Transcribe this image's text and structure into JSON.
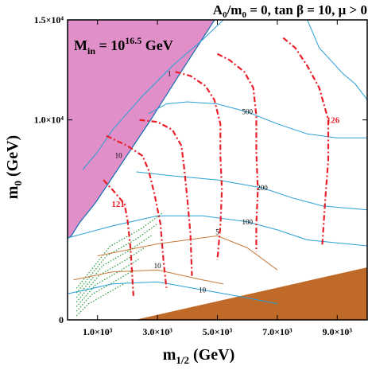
{
  "chart_data": {
    "type": "line",
    "title": "A0/m0 = 0, tan β = 10, μ > 0",
    "title_parts": {
      "a0": "A",
      "s0": "0",
      "slash": "/m",
      "s1": "0",
      "rest": " = 0, tan β = 10, μ > 0"
    },
    "min_label": {
      "m": "M",
      "sub": "in",
      "eq": " = 10",
      "sup": "16.5",
      "unit": " GeV"
    },
    "xlabel": {
      "m": "m",
      "sub": "1/2",
      "unit": " (GeV)"
    },
    "ylabel": {
      "m": "m",
      "sub": "0",
      "unit": " (GeV)"
    },
    "xlim": [
      0,
      10000
    ],
    "ylim": [
      0,
      15000
    ],
    "x_ticks": [
      {
        "value": 1000,
        "label": "1.0×10³"
      },
      {
        "value": 3000,
        "label": "3.0×10³"
      },
      {
        "value": 5000,
        "label": "5.0×10³"
      },
      {
        "value": 7000,
        "label": "7.0×10³"
      },
      {
        "value": 9000,
        "label": "9.0×10³"
      }
    ],
    "y_ticks": [
      {
        "value": 0,
        "label": "0"
      },
      {
        "value": 10000,
        "label": "1.0×10⁴"
      },
      {
        "value": 15000,
        "label": "1.5×10⁴"
      }
    ],
    "colors": {
      "no_ewsb_region": "#e08fc8",
      "charged_lsp_region": "#c06a2a",
      "higgs_mass": "#e8202a",
      "contours": "#2a9fd6",
      "brown_contours": "#c87a3a",
      "green_dotted": "#2a9a3a",
      "dashed_brown": "#c0803a"
    },
    "higgs_mass_contours": [
      {
        "label": "121",
        "points": [
          [
            1200,
            7000
          ],
          [
            1500,
            6500
          ],
          [
            1900,
            5800
          ],
          [
            2000,
            5000
          ],
          [
            2100,
            3600
          ],
          [
            2200,
            1200
          ]
        ]
      },
      {
        "label": "",
        "points": [
          [
            1300,
            9200
          ],
          [
            2000,
            8700
          ],
          [
            2500,
            8200
          ],
          [
            2700,
            7500
          ],
          [
            2900,
            6300
          ],
          [
            3100,
            4800
          ],
          [
            3200,
            3000
          ],
          [
            3300,
            1600
          ]
        ]
      },
      {
        "label": "",
        "points": [
          [
            2400,
            10000
          ],
          [
            3000,
            9900
          ],
          [
            3500,
            9500
          ],
          [
            3800,
            8700
          ],
          [
            3900,
            7500
          ],
          [
            4000,
            6000
          ],
          [
            4100,
            4300
          ],
          [
            4150,
            2200
          ]
        ]
      },
      {
        "label": "",
        "points": [
          [
            3600,
            12400
          ],
          [
            4100,
            12200
          ],
          [
            4600,
            11700
          ],
          [
            4900,
            11000
          ],
          [
            5100,
            9800
          ],
          [
            5100,
            8200
          ],
          [
            5150,
            6500
          ],
          [
            5100,
            4700
          ],
          [
            5000,
            3000
          ]
        ]
      },
      {
        "label": "",
        "points": [
          [
            5000,
            13300
          ],
          [
            5400,
            13000
          ],
          [
            5900,
            12400
          ],
          [
            6200,
            11600
          ],
          [
            6300,
            10200
          ],
          [
            6300,
            8400
          ],
          [
            6350,
            6500
          ],
          [
            6300,
            4800
          ],
          [
            6300,
            3400
          ]
        ]
      },
      {
        "label": "126",
        "points": [
          [
            7200,
            14100
          ],
          [
            7600,
            13600
          ],
          [
            8000,
            12700
          ],
          [
            8400,
            11600
          ],
          [
            8700,
            10000
          ],
          [
            8700,
            8000
          ],
          [
            8600,
            6000
          ],
          [
            8500,
            3700
          ]
        ]
      }
    ],
    "blue_contours": [
      {
        "label": "500",
        "points": [
          [
            2700,
            10300
          ],
          [
            3300,
            10800
          ],
          [
            4000,
            10900
          ],
          [
            5000,
            10800
          ],
          [
            6000,
            10400
          ],
          [
            7000,
            9800
          ],
          [
            8000,
            9300
          ],
          [
            9000,
            9100
          ],
          [
            10000,
            9100
          ]
        ]
      },
      {
        "label": "200",
        "points": [
          [
            2300,
            7400
          ],
          [
            3500,
            7200
          ],
          [
            5000,
            7000
          ],
          [
            6500,
            6600
          ],
          [
            7500,
            6100
          ],
          [
            8500,
            5700
          ],
          [
            10000,
            5500
          ]
        ]
      },
      {
        "label": "100",
        "points": [
          [
            0,
            4100
          ],
          [
            1500,
            4700
          ],
          [
            3000,
            5200
          ],
          [
            4500,
            5200
          ],
          [
            6000,
            4900
          ],
          [
            7000,
            4500
          ],
          [
            8000,
            4000
          ],
          [
            10000,
            3700
          ]
        ]
      },
      {
        "label": "10",
        "points": [
          [
            0,
            1300
          ],
          [
            1500,
            1800
          ],
          [
            3000,
            1900
          ],
          [
            4500,
            1500
          ],
          [
            6000,
            1100
          ],
          [
            7000,
            800
          ]
        ]
      },
      {
        "label": "",
        "points": [
          [
            500,
            7500
          ],
          [
            1000,
            8400
          ],
          [
            1500,
            9500
          ],
          [
            2500,
            11200
          ],
          [
            3500,
            12700
          ],
          [
            4500,
            14000
          ],
          [
            5200,
            15000
          ]
        ]
      },
      {
        "label": "",
        "points": [
          [
            8000,
            15000
          ],
          [
            8400,
            13600
          ],
          [
            9200,
            12300
          ],
          [
            9600,
            11800
          ],
          [
            10000,
            11000
          ]
        ]
      }
    ],
    "brown_contours": [
      {
        "label": "10",
        "points": [
          [
            200,
            2000
          ],
          [
            1500,
            2400
          ],
          [
            3000,
            2500
          ],
          [
            4500,
            2000
          ],
          [
            5200,
            1800
          ]
        ]
      },
      {
        "label": "5",
        "points": [
          [
            1000,
            3200
          ],
          [
            3000,
            3800
          ],
          [
            5000,
            4200
          ],
          [
            6000,
            3600
          ],
          [
            7000,
            2500
          ]
        ]
      }
    ],
    "line_labels": [
      "1",
      "10"
    ]
  }
}
